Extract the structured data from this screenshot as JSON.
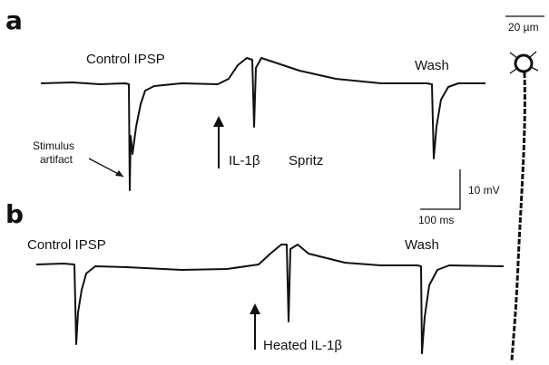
{
  "panels": [
    {
      "label": "a",
      "control": "Control  IPSP",
      "wash": "Wash",
      "artifact": [
        "Stimulus",
        "artifact"
      ],
      "treatment": "IL-1β",
      "spritz": "Spritz"
    },
    {
      "label": "b",
      "control": "Control  IPSP",
      "wash": "Wash",
      "treatment": "Heated IL-1β"
    }
  ],
  "scale_bars": {
    "voltage": "10 mV",
    "time": "100 ms",
    "length": "20 µm"
  }
}
